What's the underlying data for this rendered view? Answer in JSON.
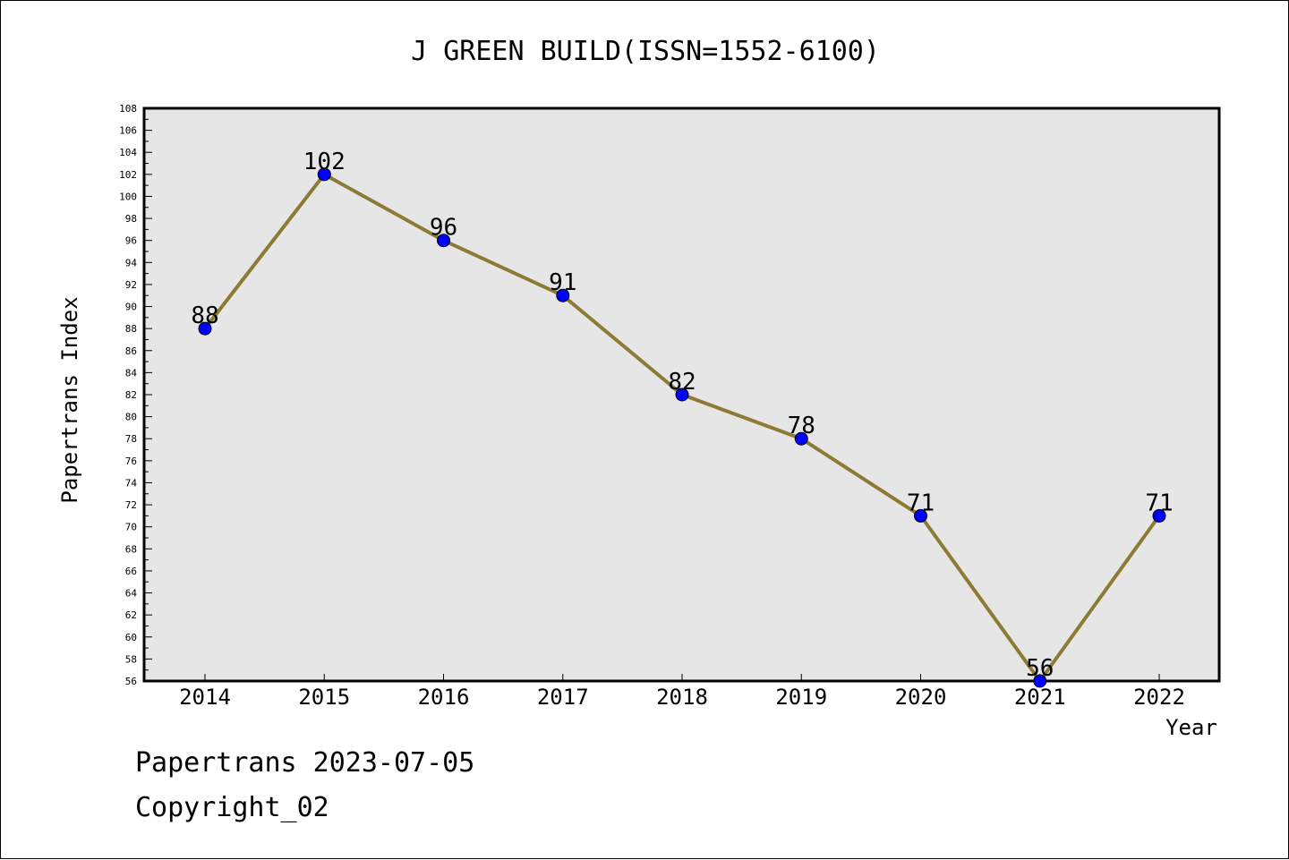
{
  "chart_data": {
    "type": "line",
    "title": "J GREEN BUILD(ISSN=1552-6100)",
    "xlabel": "Year",
    "ylabel": "Papertrans Index",
    "x": [
      "2014",
      "2015",
      "2016",
      "2017",
      "2018",
      "2019",
      "2020",
      "2021",
      "2022"
    ],
    "series": [
      {
        "values": [
          88,
          102,
          96,
          91,
          82,
          78,
          71,
          56,
          71
        ]
      }
    ],
    "ylim": [
      56,
      108
    ],
    "ytick_step": 2,
    "grid": false,
    "colors": {
      "line": "#8c7a35",
      "marker": "#0000ff",
      "plot_bg": "#e6e6e6"
    }
  },
  "footer": {
    "line1": "Papertrans 2023-07-05",
    "line2": "Copyright_02"
  }
}
